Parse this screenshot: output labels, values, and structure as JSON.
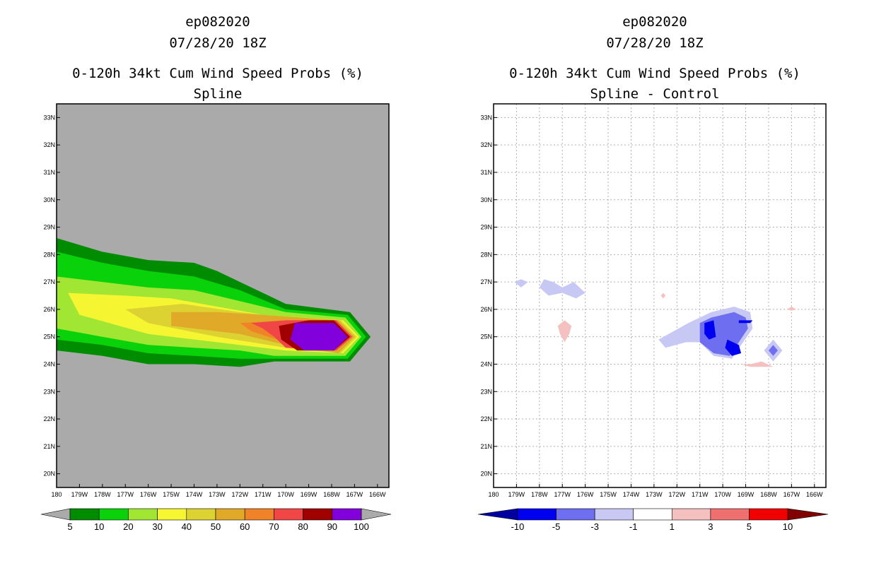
{
  "colors": {
    "background": "#aaaaaa",
    "prob": [
      "#008c00",
      "#0ad20a",
      "#a0e632",
      "#f5f532",
      "#dcd232",
      "#e0aa28",
      "#f08228",
      "#f04646",
      "#a00000",
      "#8200dc"
    ],
    "diff": [
      "#0000a0",
      "#0000f0",
      "#6e6ef0",
      "#c8c8f5",
      "#ffffff",
      "#f5c0c0",
      "#f07070",
      "#f00000",
      "#820000"
    ]
  },
  "chart_data": [
    {
      "type": "contour",
      "title_lines": [
        "ep082020",
        "07/28/20 18Z",
        "0-120h 34kt Cum Wind Speed Probs (%)",
        "Spline"
      ],
      "xlabel": "",
      "ylabel": "",
      "x_range": [
        180,
        165.5
      ],
      "y_range": [
        19.5,
        33.5
      ],
      "x_ticks": [
        "180",
        "179W",
        "178W",
        "177W",
        "176W",
        "175W",
        "174W",
        "173W",
        "172W",
        "171W",
        "170W",
        "169W",
        "168W",
        "167W",
        "166W"
      ],
      "y_ticks": [
        "20N",
        "21N",
        "22N",
        "23N",
        "24N",
        "25N",
        "26N",
        "27N",
        "28N",
        "29N",
        "30N",
        "31N",
        "32N",
        "33N"
      ],
      "grid": false,
      "colorbar": {
        "levels": [
          "5",
          "10",
          "20",
          "30",
          "40",
          "50",
          "60",
          "70",
          "80",
          "90",
          "100"
        ]
      },
      "contour_levels": [
        5,
        10,
        20,
        30,
        40,
        50,
        60,
        70,
        80,
        90
      ],
      "contours": [
        {
          "level": 5,
          "polygon": [
            [
              180,
              28.6
            ],
            [
              178,
              28.1
            ],
            [
              176,
              27.8
            ],
            [
              174,
              27.7
            ],
            [
              173,
              27.4
            ],
            [
              172,
              27.0
            ],
            [
              170,
              26.2
            ],
            [
              167.2,
              25.9
            ],
            [
              166.3,
              25.0
            ],
            [
              167.2,
              24.1
            ],
            [
              170.5,
              24.1
            ],
            [
              172,
              23.9
            ],
            [
              174,
              24.0
            ],
            [
              176,
              24.0
            ],
            [
              178,
              24.3
            ],
            [
              180,
              24.5
            ]
          ]
        },
        {
          "level": 10,
          "polygon": [
            [
              180,
              28.1
            ],
            [
              178,
              27.7
            ],
            [
              176,
              27.4
            ],
            [
              174,
              27.2
            ],
            [
              172,
              26.7
            ],
            [
              170,
              26.0
            ],
            [
              167.3,
              25.8
            ],
            [
              166.5,
              25.0
            ],
            [
              167.3,
              24.2
            ],
            [
              170.5,
              24.2
            ],
            [
              172,
              24.2
            ],
            [
              174,
              24.3
            ],
            [
              176,
              24.4
            ],
            [
              178,
              24.7
            ],
            [
              180,
              24.9
            ]
          ]
        },
        {
          "level": 20,
          "polygon": [
            [
              180,
              27.2
            ],
            [
              178,
              27.0
            ],
            [
              176,
              26.8
            ],
            [
              174,
              26.7
            ],
            [
              172,
              26.3
            ],
            [
              170,
              25.9
            ],
            [
              167.4,
              25.7
            ],
            [
              166.7,
              25.0
            ],
            [
              167.4,
              24.3
            ],
            [
              170.5,
              24.3
            ],
            [
              172,
              24.5
            ],
            [
              174,
              24.6
            ],
            [
              176,
              24.7
            ],
            [
              178,
              25.0
            ],
            [
              180,
              25.3
            ]
          ]
        },
        {
          "level": 30,
          "polygon": [
            [
              179.5,
              26.6
            ],
            [
              177,
              26.5
            ],
            [
              175,
              26.4
            ],
            [
              173,
              26.1
            ],
            [
              171,
              25.8
            ],
            [
              167.5,
              25.6
            ],
            [
              166.8,
              25.0
            ],
            [
              167.5,
              24.4
            ],
            [
              170,
              24.5
            ],
            [
              173,
              24.8
            ],
            [
              176,
              25.1
            ],
            [
              179,
              25.8
            ]
          ]
        },
        {
          "level": 40,
          "polygon": [
            [
              177,
              26.0
            ],
            [
              174.5,
              26.2
            ],
            [
              172,
              25.9
            ],
            [
              170,
              25.7
            ],
            [
              167.6,
              25.6
            ],
            [
              166.9,
              25.0
            ],
            [
              167.6,
              24.4
            ],
            [
              170,
              24.6
            ],
            [
              173,
              25.0
            ],
            [
              176,
              25.5
            ]
          ]
        },
        {
          "level": 50,
          "polygon": [
            [
              175,
              25.9
            ],
            [
              173,
              25.9
            ],
            [
              171,
              25.8
            ],
            [
              167.7,
              25.6
            ],
            [
              167.0,
              25.0
            ],
            [
              167.7,
              24.4
            ],
            [
              170,
              24.7
            ],
            [
              172,
              25.1
            ],
            [
              175,
              25.4
            ]
          ]
        },
        {
          "level": 60,
          "polygon": [
            [
              172,
              25.5
            ],
            [
              170,
              25.6
            ],
            [
              167.8,
              25.6
            ],
            [
              167.1,
              25.0
            ],
            [
              167.8,
              24.5
            ],
            [
              170,
              24.8
            ],
            [
              171.5,
              25.2
            ]
          ]
        },
        {
          "level": 70,
          "polygon": [
            [
              171.5,
              25.5
            ],
            [
              170,
              25.6
            ],
            [
              167.8,
              25.6
            ],
            [
              167.1,
              25.0
            ],
            [
              167.8,
              24.5
            ],
            [
              170,
              24.6
            ],
            [
              170.5,
              25.0
            ],
            [
              171,
              25.3
            ]
          ]
        },
        {
          "level": 80,
          "polygon": [
            [
              170.3,
              25.4
            ],
            [
              169,
              25.6
            ],
            [
              167.9,
              25.6
            ],
            [
              167.2,
              25.0
            ],
            [
              167.9,
              24.5
            ],
            [
              169.5,
              24.5
            ],
            [
              170.2,
              24.9
            ]
          ]
        },
        {
          "level": 90,
          "polygon": [
            [
              169.6,
              25.5
            ],
            [
              167.9,
              25.5
            ],
            [
              167.3,
              25.0
            ],
            [
              167.9,
              24.5
            ],
            [
              169.2,
              24.5
            ],
            [
              169.8,
              24.9
            ]
          ]
        }
      ]
    },
    {
      "type": "contour",
      "title_lines": [
        "ep082020",
        "07/28/20 18Z",
        "0-120h 34kt Cum Wind Speed Probs (%)",
        "Spline - Control"
      ],
      "xlabel": "",
      "ylabel": "",
      "x_range": [
        180,
        165.5
      ],
      "y_range": [
        19.5,
        33.5
      ],
      "x_ticks": [
        "180",
        "179W",
        "178W",
        "177W",
        "176W",
        "175W",
        "174W",
        "173W",
        "172W",
        "171W",
        "170W",
        "169W",
        "168W",
        "167W",
        "166W"
      ],
      "y_ticks": [
        "20N",
        "21N",
        "22N",
        "23N",
        "24N",
        "25N",
        "26N",
        "27N",
        "28N",
        "29N",
        "30N",
        "31N",
        "32N",
        "33N"
      ],
      "grid": true,
      "colorbar": {
        "levels": [
          "-10",
          "-5",
          "-3",
          "-1",
          "1",
          "3",
          "5",
          "10"
        ]
      },
      "contours": [
        {
          "level": -1,
          "polygon": [
            [
              179.1,
              27.0
            ],
            [
              178.8,
              27.1
            ],
            [
              178.5,
              27.0
            ],
            [
              178.8,
              26.8
            ]
          ]
        },
        {
          "level": -1,
          "polygon": [
            [
              177.8,
              27.1
            ],
            [
              177.4,
              27.0
            ],
            [
              177.0,
              26.8
            ],
            [
              176.5,
              27.0
            ],
            [
              176.0,
              26.6
            ],
            [
              176.4,
              26.4
            ],
            [
              177.0,
              26.6
            ],
            [
              177.6,
              26.5
            ],
            [
              178.0,
              26.8
            ]
          ]
        },
        {
          "level": -1,
          "polygon": [
            [
              171.5,
              25.5
            ],
            [
              170.5,
              25.9
            ],
            [
              169.5,
              26.1
            ],
            [
              168.8,
              25.9
            ],
            [
              168.7,
              25.3
            ],
            [
              169.2,
              24.7
            ],
            [
              169.6,
              24.2
            ],
            [
              170.4,
              24.3
            ],
            [
              171.0,
              24.8
            ],
            [
              171.6,
              24.8
            ],
            [
              172.5,
              24.6
            ],
            [
              172.8,
              24.9
            ]
          ]
        },
        {
          "level": -1,
          "polygon": [
            [
              167.8,
              24.9
            ],
            [
              167.4,
              24.5
            ],
            [
              167.8,
              24.1
            ],
            [
              168.2,
              24.5
            ]
          ]
        },
        {
          "level": -3,
          "polygon": [
            [
              171.0,
              25.5
            ],
            [
              170.5,
              25.7
            ],
            [
              169.5,
              25.9
            ],
            [
              169.0,
              25.7
            ],
            [
              168.9,
              25.3
            ],
            [
              169.3,
              24.8
            ],
            [
              169.7,
              24.3
            ],
            [
              170.4,
              24.4
            ],
            [
              171.0,
              24.8
            ]
          ]
        },
        {
          "level": -3,
          "polygon": [
            [
              167.8,
              24.7
            ],
            [
              167.6,
              24.5
            ],
            [
              167.8,
              24.3
            ],
            [
              168.0,
              24.5
            ]
          ]
        },
        {
          "level": -5,
          "polygon": [
            [
              170.8,
              25.5
            ],
            [
              170.4,
              25.6
            ],
            [
              170.3,
              25.0
            ],
            [
              170.6,
              24.9
            ],
            [
              170.8,
              25.1
            ]
          ]
        },
        {
          "level": -5,
          "polygon": [
            [
              169.3,
              25.6
            ],
            [
              168.7,
              25.6
            ],
            [
              168.8,
              25.5
            ],
            [
              169.3,
              25.5
            ]
          ]
        },
        {
          "level": -5,
          "polygon": [
            [
              169.8,
              24.9
            ],
            [
              169.3,
              24.7
            ],
            [
              169.2,
              24.4
            ],
            [
              169.6,
              24.3
            ],
            [
              169.9,
              24.6
            ]
          ]
        },
        {
          "level": 1,
          "polygon": [
            [
              176.9,
              25.6
            ],
            [
              176.6,
              25.4
            ],
            [
              176.7,
              25.1
            ],
            [
              176.9,
              24.8
            ],
            [
              177.1,
              25.1
            ],
            [
              177.2,
              25.4
            ]
          ]
        },
        {
          "level": 1,
          "polygon": [
            [
              172.6,
              26.6
            ],
            [
              172.5,
              26.5
            ],
            [
              172.6,
              26.4
            ],
            [
              172.7,
              26.5
            ]
          ]
        },
        {
          "level": 1,
          "polygon": [
            [
              168.8,
              24.0
            ],
            [
              168.3,
              24.1
            ],
            [
              167.8,
              23.9
            ],
            [
              168.8,
              23.9
            ],
            [
              169.2,
              24.0
            ]
          ]
        },
        {
          "level": 1,
          "polygon": [
            [
              167.0,
              26.1
            ],
            [
              166.8,
              26.0
            ],
            [
              167.0,
              25.95
            ],
            [
              167.2,
              26.0
            ]
          ]
        }
      ]
    }
  ]
}
